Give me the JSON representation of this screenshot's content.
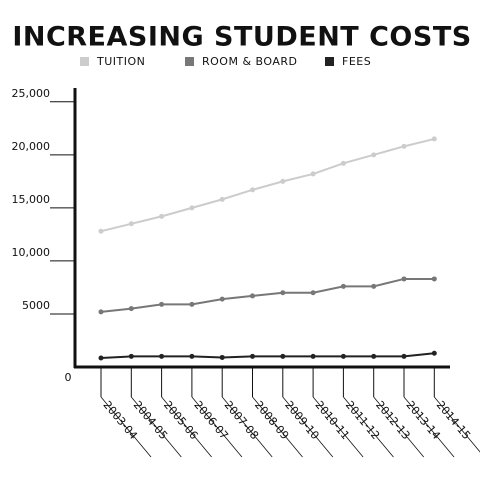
{
  "chart_data": {
    "type": "line",
    "title": "INCREASING STUDENT COSTS",
    "categories": [
      "2003-04",
      "2004-05",
      "2005-06",
      "2006-07",
      "2007-08",
      "2008-09",
      "2009-10",
      "2010-11",
      "2011-12",
      "2012-13",
      "2013-14",
      "2014-15"
    ],
    "series": [
      {
        "name": "TUITION",
        "color": "#cccccc",
        "values": [
          12800,
          13500,
          14200,
          15000,
          15800,
          16700,
          17500,
          18200,
          19200,
          20000,
          20800,
          21500
        ]
      },
      {
        "name": "ROOM & BOARD",
        "color": "#777777",
        "values": [
          5200,
          5500,
          5900,
          5900,
          6400,
          6700,
          7000,
          7000,
          7600,
          7600,
          8300,
          8300
        ]
      },
      {
        "name": "FEES",
        "color": "#222222",
        "values": [
          850,
          1000,
          1000,
          1000,
          900,
          1000,
          1000,
          1000,
          1000,
          1000,
          1000,
          1300
        ]
      }
    ],
    "ylim": [
      0,
      26300
    ],
    "yticks": [
      0,
      5000,
      {
        "value": 10000,
        "label": "10,000"
      },
      {
        "value": 15000,
        "label": "15,000"
      },
      {
        "value": 20000,
        "label": "20,000"
      },
      {
        "value": 25000,
        "label": "25,000"
      }
    ]
  }
}
